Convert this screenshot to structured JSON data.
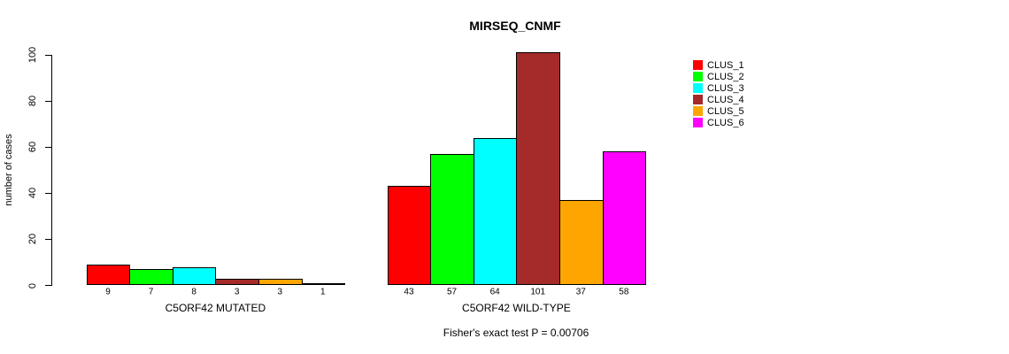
{
  "title": "MIRSEQ_CNMF",
  "footer": "Fisher's exact test P = 0.00706",
  "chart_data": {
    "type": "bar",
    "title": "MIRSEQ_CNMF",
    "xlabel": "",
    "ylabel": "number of cases",
    "ylim": [
      0,
      100
    ],
    "yticks": [
      0,
      20,
      40,
      60,
      80,
      100
    ],
    "grid": false,
    "legend_position": "right",
    "legend": [
      {
        "label": "CLUS_1",
        "color": "#FF0000"
      },
      {
        "label": "CLUS_2",
        "color": "#00FF00"
      },
      {
        "label": "CLUS_3",
        "color": "#00FFFF"
      },
      {
        "label": "CLUS_4",
        "color": "#A52A2A"
      },
      {
        "label": "CLUS_5",
        "color": "#FFA500"
      },
      {
        "label": "CLUS_6",
        "color": "#FF00FF"
      }
    ],
    "series_colors": [
      "#FF0000",
      "#00FF00",
      "#00FFFF",
      "#A52A2A",
      "#FFA500",
      "#FF00FF"
    ],
    "categories": [
      "CLUS_1",
      "CLUS_2",
      "CLUS_3",
      "CLUS_4",
      "CLUS_5",
      "CLUS_6"
    ],
    "groups": [
      {
        "label": "C5ORF42 MUTATED",
        "values": [
          9,
          7,
          8,
          3,
          3,
          1
        ]
      },
      {
        "label": "C5ORF42 WILD-TYPE",
        "values": [
          43,
          57,
          64,
          101,
          37,
          58
        ]
      }
    ],
    "annotation": "Fisher's exact test P = 0.00706",
    "bar_border_color": "#000000",
    "axis_color": "#000000"
  }
}
